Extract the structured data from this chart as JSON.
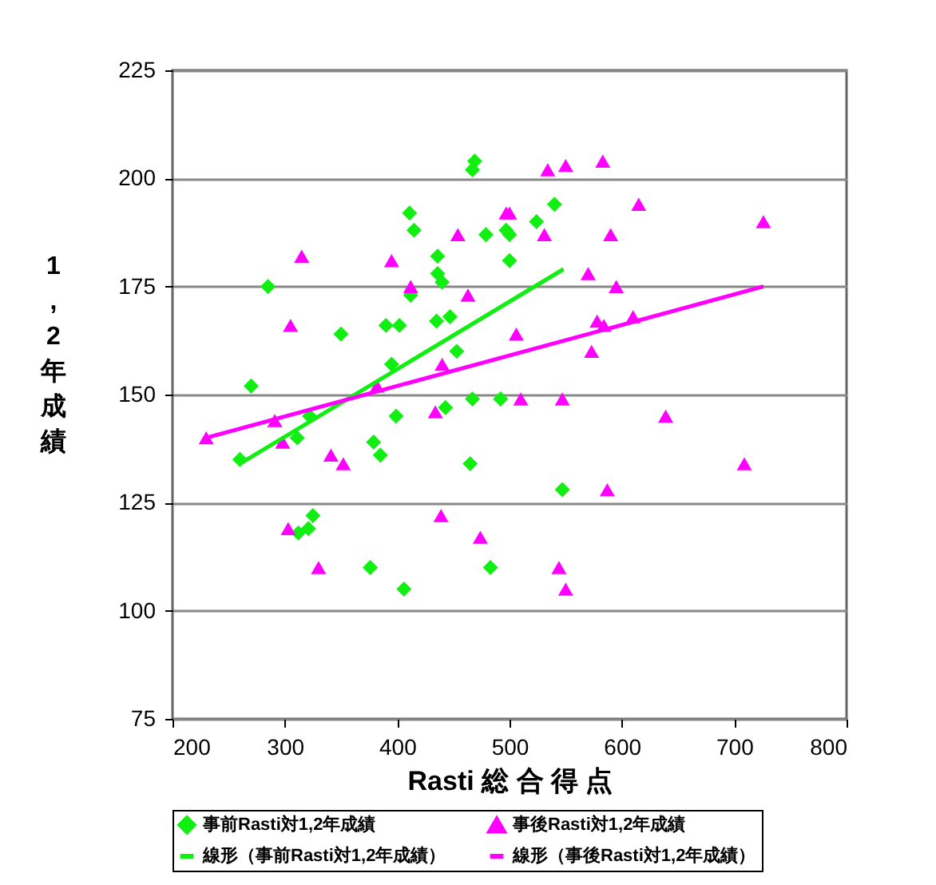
{
  "chart_data": {
    "type": "scatter",
    "xlabel": "Rasti 総 合 得 点",
    "ylabel": "1,2年成績",
    "xlim": [
      200,
      800
    ],
    "xticks": [
      200,
      300,
      400,
      500,
      600,
      700,
      800
    ],
    "ylim": [
      75,
      225
    ],
    "yticks": [
      75,
      100,
      125,
      150,
      175,
      200,
      225
    ],
    "grid": "y",
    "legend": "bottom",
    "series": [
      {
        "name": "事前Rasti対1,2年成績",
        "marker": "diamond",
        "color": "#11ee11",
        "x": [
          469,
          467,
          411,
          415,
          479,
          497,
          436,
          500,
          436,
          440,
          412,
          285,
          350,
          390,
          402,
          435,
          447,
          453,
          395,
          270,
          467,
          492,
          443,
          399,
          322,
          311,
          260,
          379,
          385,
          465,
          325,
          321,
          312,
          376,
          406,
          483,
          540,
          524,
          500,
          547
        ],
        "values": [
          204,
          202,
          192,
          188,
          187,
          188,
          182,
          181,
          178,
          176,
          173,
          175,
          164,
          166,
          166,
          167,
          168,
          160,
          157,
          152,
          149,
          149,
          147,
          145,
          145,
          140,
          135,
          139,
          136,
          134,
          122,
          119,
          118,
          110,
          105,
          110,
          194,
          190,
          187,
          128
        ]
      },
      {
        "name": "事後Rasti対1,2年成績",
        "marker": "triangle",
        "color": "#ff00ff",
        "x": [
          230,
          315,
          305,
          291,
          298,
          341,
          352,
          303,
          330,
          395,
          412,
          382,
          440,
          434,
          463,
          454,
          439,
          474,
          497,
          534,
          550,
          583,
          500,
          531,
          615,
          590,
          726,
          570,
          595,
          578,
          584,
          610,
          573,
          506,
          510,
          547,
          639,
          709,
          587,
          544,
          550
        ],
        "values": [
          140,
          182,
          166,
          144,
          139,
          136,
          134,
          119,
          110,
          181,
          175,
          152,
          157,
          146,
          173,
          187,
          122,
          117,
          192,
          202,
          203,
          204,
          192,
          187,
          194,
          187,
          190,
          178,
          175,
          167,
          166,
          168,
          160,
          164,
          149,
          149,
          145,
          134,
          128,
          110,
          105
        ]
      },
      {
        "name": "線形（事前Rasti対1,2年成績）",
        "type": "line",
        "marker": "none",
        "color": "#11ee11",
        "x": [
          260,
          548
        ],
        "values": [
          134,
          179
        ]
      },
      {
        "name": "線形（事後Rasti対1,2年成績）",
        "type": "line",
        "marker": "none",
        "color": "#ff00ff",
        "x": [
          230,
          726
        ],
        "values": [
          140,
          175
        ]
      }
    ]
  }
}
